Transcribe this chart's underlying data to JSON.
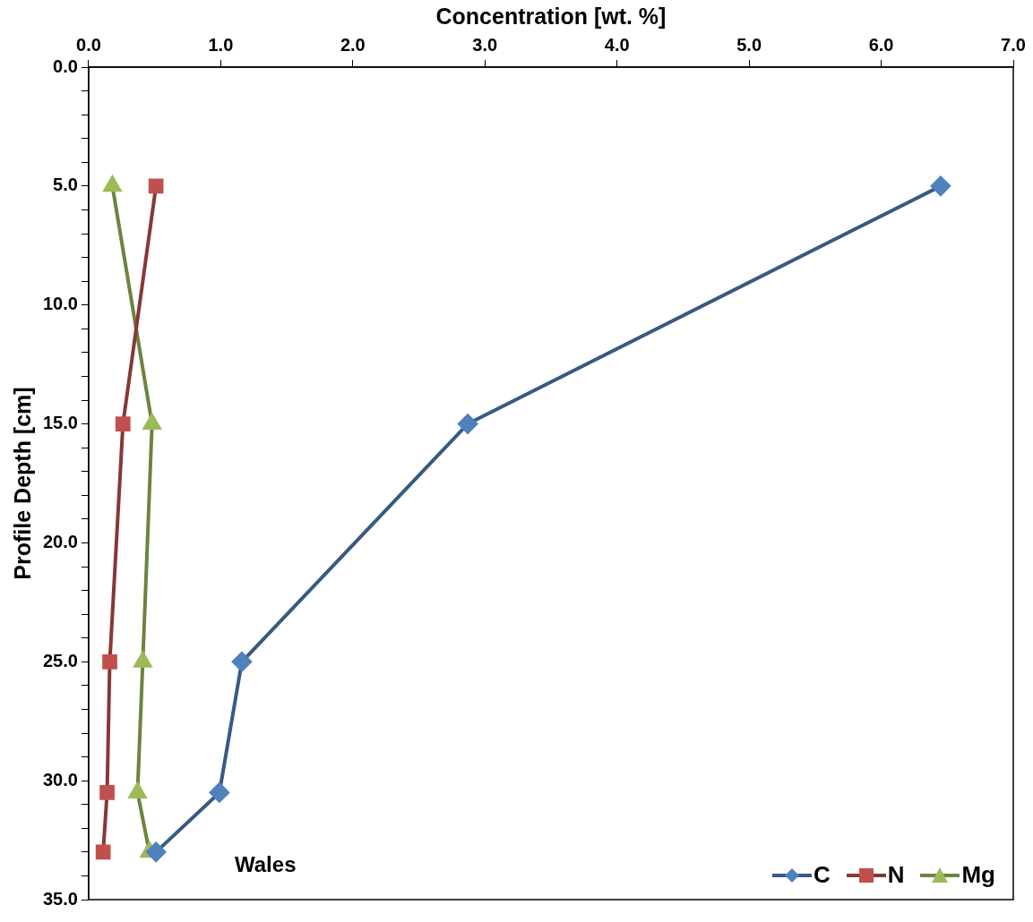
{
  "chart_data": {
    "type": "line",
    "xlabel": "Concentration [wt. %]",
    "ylabel": "Profile Depth [cm]",
    "xlim": [
      0,
      7
    ],
    "xticks": [
      {
        "value": 0,
        "label": "0.0"
      },
      {
        "value": 1,
        "label": "1.0"
      },
      {
        "value": 2,
        "label": "2.0"
      },
      {
        "value": 3,
        "label": "3.0"
      },
      {
        "value": 4,
        "label": "4.0"
      },
      {
        "value": 5,
        "label": "5.0"
      },
      {
        "value": 6,
        "label": "6.0"
      },
      {
        "value": 7,
        "label": "7.0"
      }
    ],
    "ylim": [
      35,
      0
    ],
    "yticks": [
      {
        "value": 0,
        "label": "0.0"
      },
      {
        "value": 1,
        "label": null
      },
      {
        "value": 2,
        "label": null
      },
      {
        "value": 3,
        "label": null
      },
      {
        "value": 4,
        "label": null
      },
      {
        "value": 5,
        "label": "5.0"
      },
      {
        "value": 6,
        "label": null
      },
      {
        "value": 7,
        "label": null
      },
      {
        "value": 8,
        "label": null
      },
      {
        "value": 9,
        "label": null
      },
      {
        "value": 10,
        "label": "10.0"
      },
      {
        "value": 11,
        "label": null
      },
      {
        "value": 12,
        "label": null
      },
      {
        "value": 13,
        "label": null
      },
      {
        "value": 14,
        "label": null
      },
      {
        "value": 15,
        "label": "15.0"
      },
      {
        "value": 16,
        "label": null
      },
      {
        "value": 17,
        "label": null
      },
      {
        "value": 18,
        "label": null
      },
      {
        "value": 19,
        "label": null
      },
      {
        "value": 20,
        "label": "20.0"
      },
      {
        "value": 21,
        "label": null
      },
      {
        "value": 22,
        "label": null
      },
      {
        "value": 23,
        "label": null
      },
      {
        "value": 24,
        "label": null
      },
      {
        "value": 25,
        "label": "25.0"
      },
      {
        "value": 26,
        "label": null
      },
      {
        "value": 27,
        "label": null
      },
      {
        "value": 28,
        "label": null
      },
      {
        "value": 29,
        "label": null
      },
      {
        "value": 30,
        "label": "30.0"
      },
      {
        "value": 31,
        "label": null
      },
      {
        "value": 32,
        "label": null
      },
      {
        "value": 33,
        "label": null
      },
      {
        "value": 34,
        "label": null
      },
      {
        "value": 35,
        "label": "35.0"
      }
    ],
    "series": [
      {
        "name": "C",
        "color": "#4f81bd",
        "marker": "diamond",
        "x": [
          6.45,
          2.87,
          1.16,
          0.99,
          0.51
        ],
        "values": [
          5,
          15,
          25,
          30.5,
          33
        ]
      },
      {
        "name": "N",
        "color": "#c0504d",
        "marker": "square",
        "x": [
          0.51,
          0.26,
          0.16,
          0.14,
          0.11
        ],
        "values": [
          5,
          15,
          25,
          30.5,
          33
        ]
      },
      {
        "name": "Mg",
        "color": "#9bbb59",
        "marker": "triangle",
        "x": [
          0.18,
          0.48,
          0.41,
          0.37,
          0.46
        ],
        "values": [
          5,
          15,
          25,
          30.5,
          33
        ]
      }
    ],
    "annotations": [
      "Wales"
    ],
    "legend": "bottom right",
    "grid": false
  }
}
